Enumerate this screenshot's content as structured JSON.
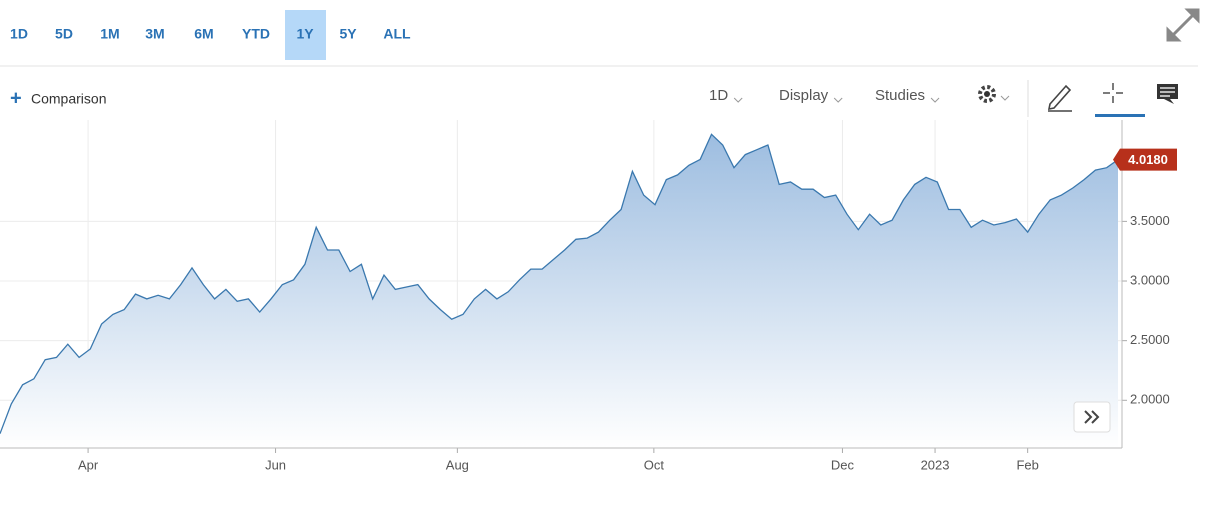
{
  "range_buttons": [
    "1D",
    "5D",
    "1M",
    "3M",
    "6M",
    "YTD",
    "1Y",
    "5Y",
    "ALL"
  ],
  "active_range_index": 6,
  "comparison": "Comparison",
  "toolbar_menus": [
    "1D",
    "Display",
    "Studies"
  ],
  "chart_data": {
    "type": "area",
    "color": "#3a78ae",
    "values": [
      1.72,
      1.97,
      2.13,
      2.18,
      2.34,
      2.36,
      2.47,
      2.36,
      2.43,
      2.64,
      2.72,
      2.76,
      2.89,
      2.85,
      2.88,
      2.85,
      2.97,
      3.11,
      2.97,
      2.85,
      2.93,
      2.83,
      2.85,
      2.74,
      2.85,
      2.97,
      3.01,
      3.14,
      3.45,
      3.26,
      3.26,
      3.08,
      3.14,
      2.85,
      3.05,
      2.93,
      2.95,
      2.97,
      2.85,
      2.76,
      2.68,
      2.72,
      2.85,
      2.93,
      2.85,
      2.91,
      3.01,
      3.1,
      3.1,
      3.18,
      3.26,
      3.35,
      3.36,
      3.41,
      3.51,
      3.6,
      3.92,
      3.72,
      3.64,
      3.85,
      3.89,
      3.97,
      4.02,
      4.23,
      4.14,
      3.95,
      4.06,
      4.1,
      4.14,
      3.81,
      3.83,
      3.77,
      3.77,
      3.7,
      3.72,
      3.56,
      3.43,
      3.56,
      3.47,
      3.51,
      3.68,
      3.81,
      3.87,
      3.83,
      3.6,
      3.6,
      3.45,
      3.51,
      3.47,
      3.49,
      3.52,
      3.41,
      3.56,
      3.68,
      3.72,
      3.78,
      3.85,
      3.93,
      3.95,
      4.018
    ],
    "last_label": "4.0180",
    "xlim": [
      0,
      99
    ],
    "xticks": [
      {
        "value": 7.8,
        "label": "Apr"
      },
      {
        "value": 24.4,
        "label": "Jun"
      },
      {
        "value": 40.5,
        "label": "Aug"
      },
      {
        "value": 57.9,
        "label": "Oct"
      },
      {
        "value": 74.6,
        "label": "Dec"
      },
      {
        "value": 82.8,
        "label": "2023"
      },
      {
        "value": 91.0,
        "label": "Feb"
      }
    ],
    "ylim": [
      1.6,
      4.35
    ],
    "yticks": [
      {
        "value": 2,
        "label": "2.0000"
      },
      {
        "value": 2.5,
        "label": "2.5000"
      },
      {
        "value": 3,
        "label": "3.0000"
      },
      {
        "value": 3.5,
        "label": "3.5000"
      }
    ],
    "grid": true
  }
}
